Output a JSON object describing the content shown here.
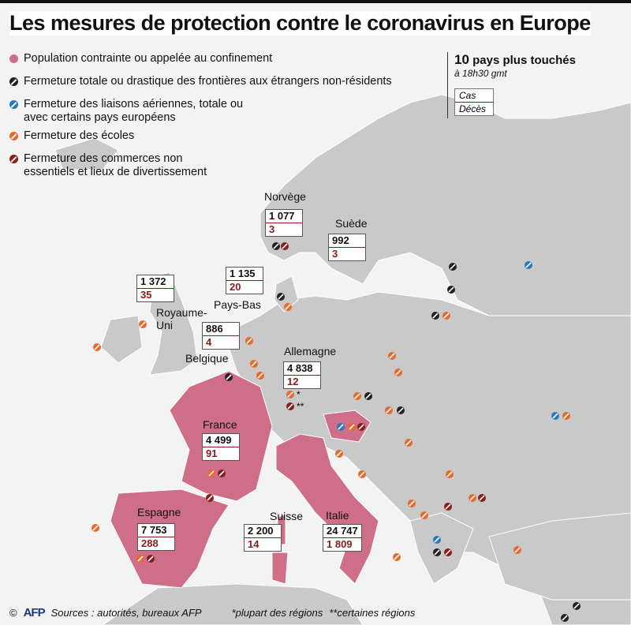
{
  "title": "Les mesures de protection contre le coronavirus en Europe",
  "legend": [
    {
      "label": "Population contrainte ou appelée au confinement",
      "color": "#cf6e88",
      "icon": "pink-dot"
    },
    {
      "label": "Fermeture totale ou drastique des frontières aux étrangers non-résidents",
      "color": "#222222",
      "icon": "black-slashed-dot"
    },
    {
      "label": "Fermeture des liaisons aériennes, totale ou avec certains pays européens",
      "color": "#2a7ab8",
      "icon": "blue-slashed-dot"
    },
    {
      "label": "Fermeture des écoles",
      "color": "#e8692a",
      "icon": "orange-slashed-dot"
    },
    {
      "label": "Fermeture des commerces non essentiels et lieux de divertissement",
      "color": "#8b1c1c",
      "icon": "darkred-slashed-dot"
    }
  ],
  "top10": {
    "count": "10",
    "heading": "pays  plus touchés",
    "time": "à 18h30 gmt",
    "cases_key": "Cas",
    "deaths_key": "Décès"
  },
  "countries": [
    {
      "name": "Norvège",
      "cases": "1 077",
      "deaths": "3"
    },
    {
      "name": "Suède",
      "cases": "992",
      "deaths": "3"
    },
    {
      "name": "Royaume-Uni",
      "cases": "1 372",
      "deaths": "35"
    },
    {
      "name": "Pays-Bas",
      "cases": "1 135",
      "deaths": "20"
    },
    {
      "name": "Belgique",
      "cases": "886",
      "deaths": "4"
    },
    {
      "name": "Allemagne",
      "cases": "4 838",
      "deaths": "12"
    },
    {
      "name": "France",
      "cases": "4 499",
      "deaths": "91"
    },
    {
      "name": "Espagne",
      "cases": "7 753",
      "deaths": "288"
    },
    {
      "name": "Suisse",
      "cases": "2 200",
      "deaths": "14"
    },
    {
      "name": "Italie",
      "cases": "24 747",
      "deaths": "1 809"
    }
  ],
  "germany_notes": {
    "schools": "*",
    "shops": "**"
  },
  "footer": {
    "copyright": "©",
    "logo": "AFP",
    "sources": "Sources : autorités, bureaux AFP",
    "note1": "*plupart des régions",
    "note2": "**certaines régions"
  },
  "colors": {
    "land": "#c9c9c9",
    "sea": "#f3f3f3",
    "confined": "#cf6e88",
    "border": "#ffffff"
  }
}
